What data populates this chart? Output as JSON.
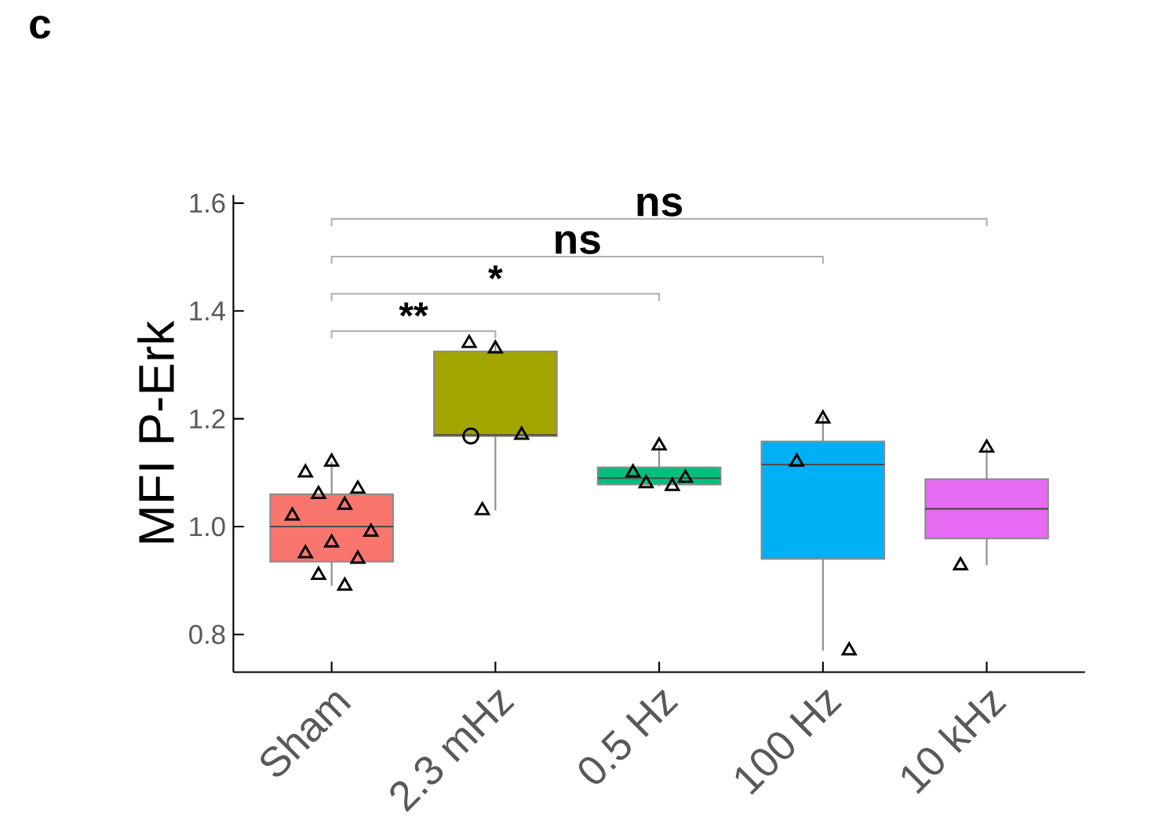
{
  "chart_data": {
    "type": "box",
    "title": "c",
    "ylabel": "MFI P-Erk",
    "categories": [
      "Sham",
      "2.3 mHz",
      "0.5 Hz",
      "100 Hz",
      "10 kHz"
    ],
    "colors": [
      "#f8766d",
      "#a3a500",
      "#00bf7d",
      "#00b0f6",
      "#e76bf3"
    ],
    "boxes": [
      {
        "low": 0.89,
        "q1": 0.935,
        "median": 1.0,
        "q3": 1.06,
        "high": 1.12
      },
      {
        "low": 1.03,
        "q1": 1.168,
        "median": 1.17,
        "q3": 1.325,
        "high": 1.34
      },
      {
        "low": 1.075,
        "q1": 1.078,
        "median": 1.09,
        "q3": 1.11,
        "high": 1.15
      },
      {
        "low": 0.77,
        "q1": 0.94,
        "median": 1.115,
        "q3": 1.158,
        "high": 1.205
      },
      {
        "low": 0.928,
        "q1": 0.978,
        "median": 1.033,
        "q3": 1.088,
        "high": 1.146
      }
    ],
    "series": [
      {
        "type": "scatter",
        "marker": "triangle",
        "color": "#000000",
        "x": [
          "Sham",
          "Sham",
          "Sham",
          "Sham",
          "Sham",
          "Sham",
          "Sham",
          "Sham",
          "Sham",
          "Sham",
          "Sham",
          "Sham",
          "2.3 mHz",
          "2.3 mHz",
          "2.3 mHz",
          "2.3 mHz",
          "0.5 Hz",
          "0.5 Hz",
          "0.5 Hz",
          "0.5 Hz",
          "0.5 Hz",
          "100 Hz",
          "100 Hz",
          "100 Hz",
          "10 kHz",
          "10 kHz"
        ],
        "values": [
          1.12,
          1.1,
          1.07,
          1.06,
          1.04,
          1.02,
          0.99,
          0.97,
          0.95,
          0.94,
          0.91,
          0.89,
          1.33,
          1.34,
          1.17,
          1.03,
          1.15,
          1.1,
          1.09,
          1.08,
          1.075,
          1.2,
          1.12,
          0.77,
          1.146,
          0.928
        ]
      },
      {
        "type": "scatter",
        "marker": "circle",
        "color": "#000000",
        "x": [
          "2.3 mHz"
        ],
        "values": [
          1.168
        ]
      }
    ],
    "ylim": [
      0.73,
      1.615
    ],
    "yticks": [
      {
        "value": 0.8,
        "label": "0.8"
      },
      {
        "value": 1.0,
        "label": "1.0"
      },
      {
        "value": 1.2,
        "label": "1.2"
      },
      {
        "value": 1.4,
        "label": "1.4"
      },
      {
        "value": 1.6,
        "label": "1.6"
      }
    ],
    "annotations": [
      "**",
      "*",
      "ns",
      "ns"
    ],
    "grid": false
  }
}
